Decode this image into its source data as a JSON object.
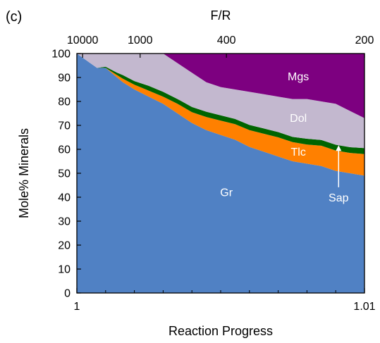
{
  "panel_label": "(c)",
  "chart_data": {
    "type": "area",
    "stacked": true,
    "xlabel": "Reaction Progress",
    "ylabel": "Mole% Minerals",
    "top_xlabel": "F/R",
    "xlim": [
      1,
      1.01
    ],
    "ylim": [
      0,
      100
    ],
    "x_ticks": [
      1,
      1.01
    ],
    "x_tick_labels": [
      "1",
      "1.01"
    ],
    "x_minor_ticks": [
      1.001,
      1.002,
      1.003,
      1.004,
      1.005,
      1.006,
      1.007,
      1.008,
      1.009
    ],
    "y_ticks": [
      0,
      10,
      20,
      30,
      40,
      50,
      60,
      70,
      80,
      90,
      100
    ],
    "top_ticks": [
      {
        "x": 1.0002,
        "label": "10000"
      },
      {
        "x": 1.0022,
        "label": "1000"
      },
      {
        "x": 1.0052,
        "label": "400"
      },
      {
        "x": 1.01,
        "label": "200"
      }
    ],
    "x": [
      1.0,
      1.0007,
      1.001,
      1.0014,
      1.0016,
      1.002,
      1.0025,
      1.003,
      1.0035,
      1.004,
      1.0045,
      1.005,
      1.0055,
      1.006,
      1.0065,
      1.007,
      1.0075,
      1.008,
      1.0085,
      1.009,
      1.0095,
      1.01
    ],
    "series": [
      {
        "name": "Gr",
        "color": "#5081c4",
        "values": [
          100,
          94,
          94,
          90,
          88,
          85,
          82,
          79,
          75,
          71,
          68,
          66,
          64,
          61,
          59,
          57,
          55,
          54,
          53,
          51,
          50,
          49
        ]
      },
      {
        "name": "Tlc",
        "color": "#ff8000",
        "values": [
          0,
          0,
          0,
          1,
          1.5,
          2,
          2.5,
          3,
          4,
          4.5,
          5.5,
          6,
          6.5,
          7,
          7.5,
          8,
          8,
          8,
          8.5,
          8.5,
          8.5,
          9
        ]
      },
      {
        "name": "Sap",
        "color": "#006400",
        "values": [
          0,
          0,
          0.5,
          1,
          1.5,
          1.5,
          2,
          2,
          2,
          2.2,
          2.2,
          2.2,
          2.2,
          2.2,
          2.2,
          2.2,
          2.2,
          2.4,
          2.4,
          2.4,
          2.4,
          2.5
        ]
      },
      {
        "name": "Dol",
        "color": "#c3b8cf",
        "values": [
          0,
          6,
          5.5,
          8,
          9,
          11.5,
          13.5,
          16,
          15,
          14.3,
          12.3,
          11.8,
          12.3,
          13.8,
          14.3,
          14.8,
          15.8,
          16.6,
          16.1,
          17.1,
          15.1,
          12.5
        ]
      },
      {
        "name": "Mgs",
        "color": "#7d0080",
        "values": [
          0,
          0,
          0,
          0,
          0,
          0,
          0,
          0,
          4,
          8,
          12,
          14,
          15,
          16,
          17,
          18,
          19,
          19,
          20,
          21,
          24,
          27
        ]
      }
    ],
    "annotations": [
      {
        "text": "Sap",
        "from": [
          1.0091,
          46.5
        ],
        "to": [
          1.0091,
          62
        ],
        "arrow": true
      }
    ]
  }
}
